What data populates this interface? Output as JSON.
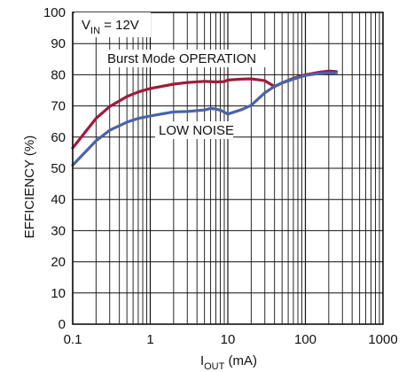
{
  "chart_data": {
    "type": "line",
    "xscale": "log",
    "xlim": [
      0.1,
      1000
    ],
    "ylim": [
      0,
      100
    ],
    "grid": true,
    "x_ticks": [
      0.1,
      1,
      10,
      100,
      1000
    ],
    "x_tick_labels": [
      "0.1",
      "1",
      "10",
      "100",
      "1000"
    ],
    "y_ticks": [
      0,
      10,
      20,
      30,
      40,
      50,
      60,
      70,
      80,
      90,
      100
    ],
    "y_tick_labels": [
      "0",
      "10",
      "20",
      "30",
      "40",
      "50",
      "60",
      "70",
      "80",
      "90",
      "100"
    ],
    "xlabel": {
      "main": "I",
      "sub": "OUT",
      "unit": " (mA)"
    },
    "ylabel": "EFFICIENCY (%)",
    "condition": {
      "main": "V",
      "sub": "IN",
      "rest": " = 12V"
    },
    "series": [
      {
        "name": "Burst Mode OPERATION",
        "color": "#a0193c",
        "x": [
          0.1,
          0.2,
          0.3,
          0.5,
          0.7,
          1,
          2,
          3,
          5,
          7,
          9,
          10,
          15,
          20,
          30,
          40,
          50,
          70,
          100,
          150,
          200,
          250
        ],
        "y": [
          56.5,
          66,
          69.8,
          73,
          74.5,
          75.6,
          77,
          77.5,
          77.9,
          77.7,
          77.8,
          78.3,
          78.6,
          78.7,
          78.1,
          76.2,
          77.4,
          78.9,
          80,
          80.8,
          81.2,
          81
        ]
      },
      {
        "name": "LOW NOISE",
        "color": "#4a63a8",
        "x": [
          0.1,
          0.2,
          0.3,
          0.5,
          0.7,
          1,
          2,
          3,
          5,
          6,
          7,
          8,
          9,
          10,
          15,
          20,
          30,
          40,
          50,
          70,
          100,
          150,
          200,
          250
        ],
        "y": [
          51,
          58.8,
          62.2,
          64.8,
          66,
          66.8,
          68.1,
          68.2,
          68.7,
          69.2,
          69,
          68.6,
          68,
          67.4,
          68.8,
          70.2,
          74.2,
          76.3,
          77.4,
          78.6,
          79.8,
          80.4,
          80.6,
          80.5
        ]
      }
    ]
  }
}
